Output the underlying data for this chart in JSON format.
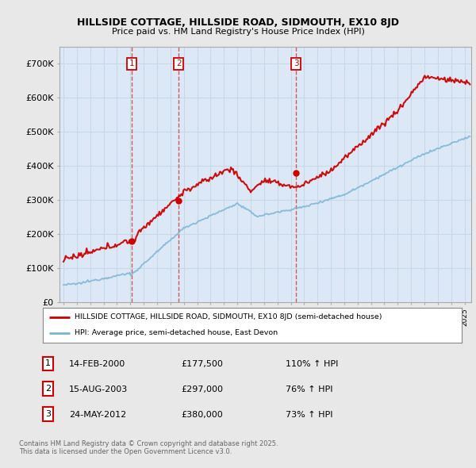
{
  "title1": "HILLSIDE COTTAGE, HILLSIDE ROAD, SIDMOUTH, EX10 8JD",
  "title2": "Price paid vs. HM Land Registry's House Price Index (HPI)",
  "bg_color": "#e8e8e8",
  "plot_bg_color": "#dce8f5",
  "legend_bg": "#ffffff",
  "sale_dates_num": [
    2000.12,
    2003.62,
    2012.39
  ],
  "sale_prices": [
    177500,
    297000,
    380000
  ],
  "sale_labels": [
    "1",
    "2",
    "3"
  ],
  "legend_entries": [
    "HILLSIDE COTTAGE, HILLSIDE ROAD, SIDMOUTH, EX10 8JD (semi-detached house)",
    "HPI: Average price, semi-detached house, East Devon"
  ],
  "table_rows": [
    [
      "1",
      "14-FEB-2000",
      "£177,500",
      "110% ↑ HPI"
    ],
    [
      "2",
      "15-AUG-2003",
      "£297,000",
      "76% ↑ HPI"
    ],
    [
      "3",
      "24-MAY-2012",
      "£380,000",
      "73% ↑ HPI"
    ]
  ],
  "footnote": "Contains HM Land Registry data © Crown copyright and database right 2025.\nThis data is licensed under the Open Government Licence v3.0.",
  "ylim": [
    0,
    750000
  ],
  "yticks": [
    0,
    100000,
    200000,
    300000,
    400000,
    500000,
    600000,
    700000
  ],
  "ytick_labels": [
    "£0",
    "£100K",
    "£200K",
    "£300K",
    "£400K",
    "£500K",
    "£600K",
    "£700K"
  ],
  "xlim_start": 1994.7,
  "xlim_end": 2025.5,
  "red_line_color": "#cc0000",
  "blue_line_color": "#7ab3d4",
  "vline_color": "#cc4444",
  "grid_color": "#c8d8e8",
  "seed": 12345
}
